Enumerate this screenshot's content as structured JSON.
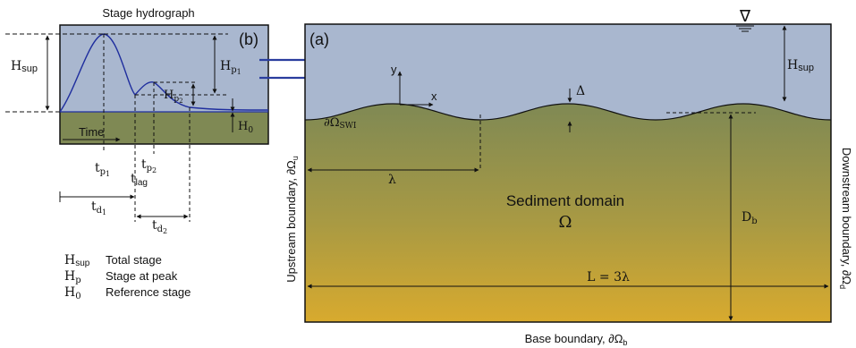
{
  "colors": {
    "water": "#a9b7cf",
    "sediment_top": "#7f8954",
    "sediment_bottom": "#d8aa2e",
    "hydrograph_line": "#1f2e9e",
    "arrow": "#2a3d9e",
    "ink": "#111111"
  },
  "hydrograph_panel": {
    "title": "Stage hydrograph",
    "panel_label": "(b)",
    "h_sup": "H",
    "h_sup_sub": "sup",
    "h_p1": "H",
    "h_p1_sub": "p",
    "h_p1_subsub": "1",
    "h_p2": "H",
    "h_p2_sub": "p",
    "h_p2_subsub": "2",
    "h_0": "H",
    "h_0_sub": "0",
    "time_label": "Time",
    "t_p1": "t",
    "t_p1_sub": "p",
    "t_p1_subsub": "1",
    "t_p2": "t",
    "t_p2_sub": "p",
    "t_p2_subsub": "2",
    "t_lag": "t",
    "t_lag_sub": "lag",
    "t_d1": "t",
    "t_d1_sub": "d",
    "t_d1_subsub": "1",
    "t_d2": "t",
    "t_d2_sub": "d",
    "t_d2_subsub": "2"
  },
  "legend": [
    {
      "symbol": "H",
      "sub": "sup",
      "text": "Total stage"
    },
    {
      "symbol": "H",
      "sub": "p",
      "text": "Stage at peak"
    },
    {
      "symbol": "H",
      "sub": "0",
      "text": "Reference stage"
    }
  ],
  "domain_panel": {
    "panel_label": "(a)",
    "water_symbol": "∇",
    "h_sup": "H",
    "h_sup_sub": "sup",
    "delta": "Δ",
    "swi_label": "∂Ω",
    "swi_sub": "SWI",
    "axis_y": "y",
    "axis_x": "x",
    "lambda": "λ",
    "sediment_title": "Sediment domain",
    "omega": "Ω",
    "db_label": "D",
    "db_sub": "b",
    "length_label": "L = 3λ",
    "upstream_label": "Upstream boundary, ∂Ω",
    "upstream_sub": "u",
    "downstream_label": "Downstream boundary, ∂Ω",
    "downstream_sub": "d",
    "base_label": "Base boundary, ∂Ω",
    "base_sub": "b"
  }
}
